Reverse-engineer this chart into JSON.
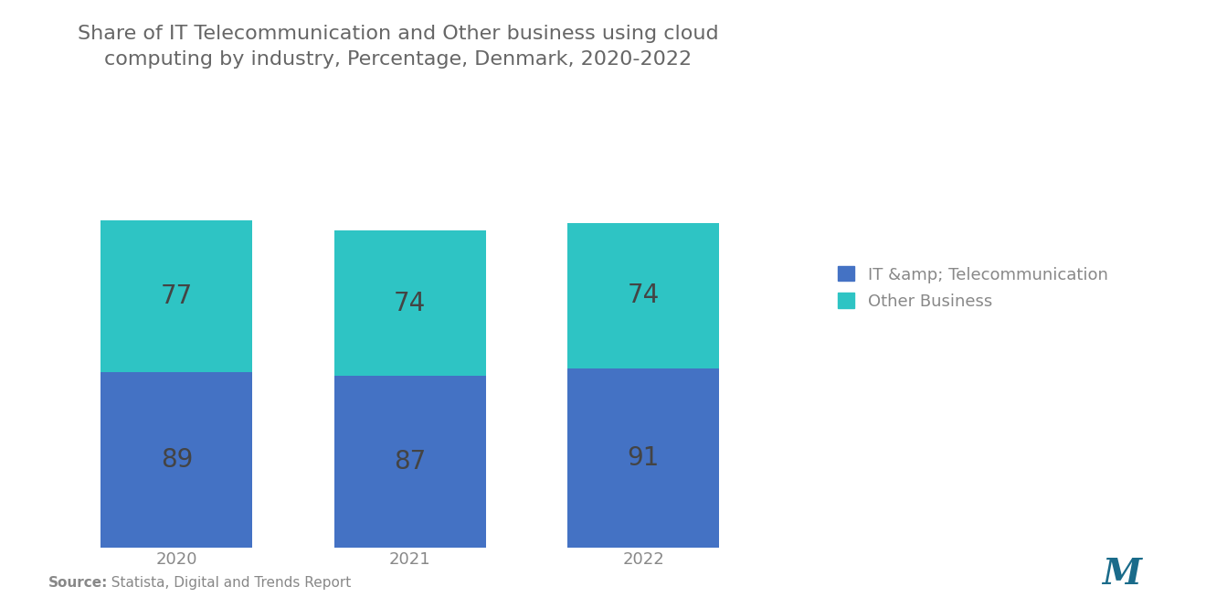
{
  "title_line1": "Share of IT Telecommunication and Other business using cloud",
  "title_line2": "computing by industry, Percentage, Denmark, 2020-2022",
  "years": [
    "2020",
    "2021",
    "2022"
  ],
  "it_telecom_values": [
    89,
    87,
    91
  ],
  "other_business_values": [
    77,
    74,
    74
  ],
  "it_telecom_color": "#4472C4",
  "other_business_color": "#2EC4C4",
  "bar_width": 0.65,
  "label_color": "#444444",
  "title_color": "#666666",
  "source_bold": "Source:",
  "source_rest": "  Statista, Digital and Trends Report",
  "legend_label_it": "IT &amp; Telecommunication",
  "legend_label_other": "Other Business",
  "background_color": "#ffffff",
  "axis_label_color": "#888888",
  "label_fontsize": 20,
  "title_fontsize": 16,
  "tick_fontsize": 13,
  "legend_fontsize": 13,
  "source_fontsize": 11
}
